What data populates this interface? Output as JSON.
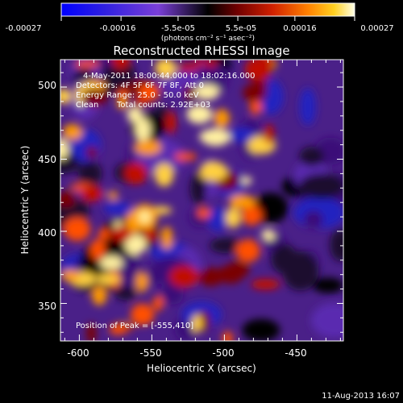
{
  "colorbar": {
    "tick_labels": [
      "-0.00027",
      "-0.00016",
      "-5.5e-05",
      "5.5e-05",
      "0.00016",
      "0.00027"
    ],
    "range": [
      -0.00027,
      0.00027
    ],
    "unit_label": "(photons cm⁻² s⁻¹ asec⁻²)",
    "colors": [
      "#0000ff",
      "#4030d0",
      "#7a3fd8",
      "#000000",
      "#7a0000",
      "#d02000",
      "#ff7800",
      "#ffd020",
      "#ffffe0"
    ]
  },
  "chart_data": {
    "type": "heatmap",
    "title": "Reconstructed RHESSI Image",
    "xlabel": "Heliocentric X (arcsec)",
    "ylabel": "Heliocentric Y (arcsec)",
    "xlim": [
      -613,
      -418
    ],
    "ylim": [
      324,
      519
    ],
    "x_ticks": [
      -600,
      -550,
      -500,
      -450
    ],
    "y_ticks": [
      350,
      400,
      450,
      500
    ],
    "peak_position": [
      -555,
      410
    ],
    "colorscale_range": [
      -0.00027,
      0.00027
    ]
  },
  "info": {
    "line1": "4-May-2011 18:00:44.000 to 18:02:16.000",
    "line2": "Detectors: 4F 5F 6F 7F 8F, Att 0",
    "line3": "Energy Range: 25.0 - 50.0 keV",
    "clean_label": "Clean",
    "total_counts": "Total counts: 2.92E+03",
    "peak_text": "Position of Peak = [-555,410]"
  },
  "footer": {
    "date": "11-Aug-2013 16:07"
  }
}
